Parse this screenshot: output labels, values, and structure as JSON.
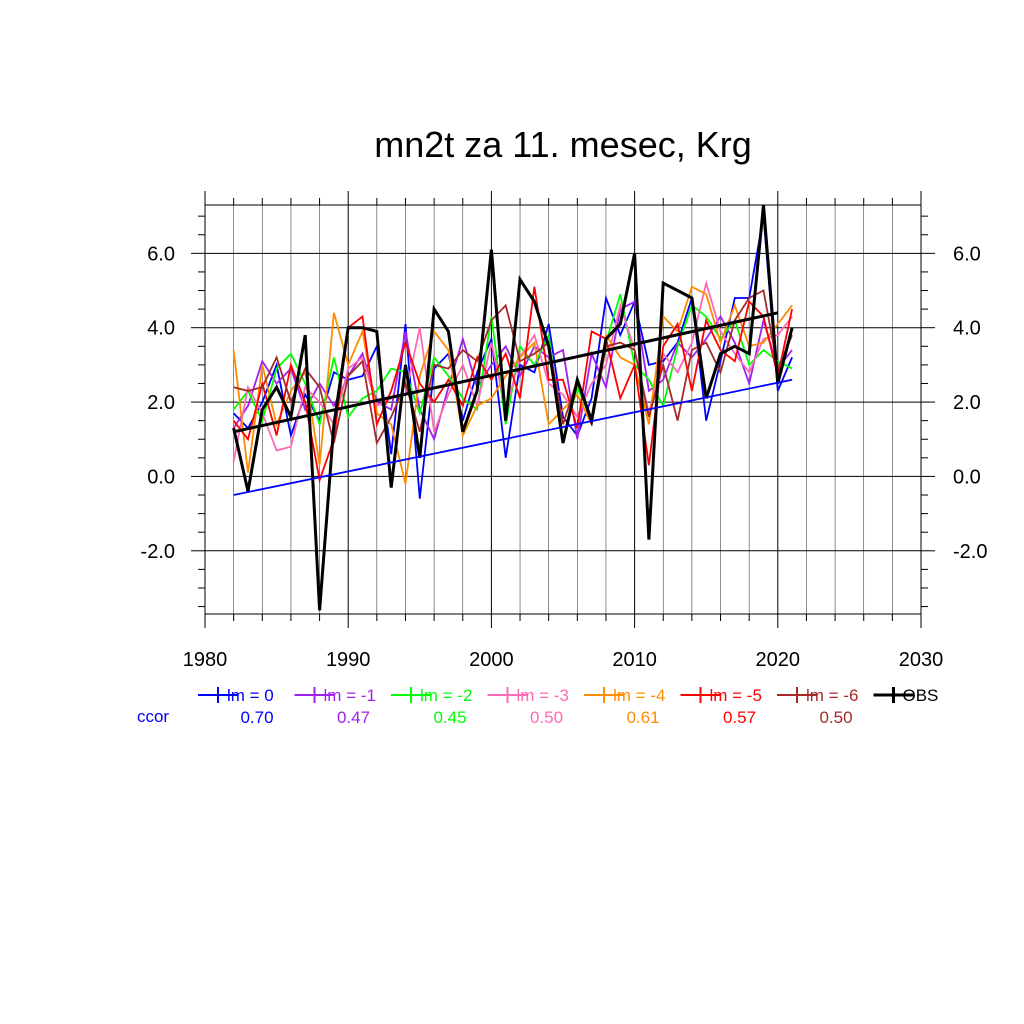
{
  "chart_data": {
    "type": "line",
    "title": "mn2t za 11. mesec, Krg",
    "xlim": [
      1980,
      2030
    ],
    "ylim": [
      -3.7,
      7.3
    ],
    "x_ticks": [
      1980,
      1990,
      2000,
      2010,
      2020,
      2030
    ],
    "y_ticks": [
      -2.0,
      0.0,
      2.0,
      4.0,
      6.0
    ],
    "grid": true,
    "legend_position": "bottom",
    "ccor_label": "ccor",
    "x": [
      1982,
      1983,
      1984,
      1985,
      1986,
      1987,
      1988,
      1989,
      1990,
      1991,
      1992,
      1993,
      1994,
      1995,
      1996,
      1997,
      1998,
      1999,
      2000,
      2001,
      2002,
      2003,
      2004,
      2005,
      2006,
      2007,
      2008,
      2009,
      2010,
      2011,
      2012,
      2013,
      2014,
      2015,
      2016,
      2017,
      2018,
      2019,
      2020,
      2021
    ],
    "series": [
      {
        "name": "lm = 0",
        "ccor": "0.70",
        "color": "#0000ff",
        "values": [
          1.7,
          1.3,
          2.0,
          3.0,
          1.1,
          2.2,
          1.5,
          2.8,
          2.6,
          2.7,
          3.5,
          0.6,
          4.1,
          -0.6,
          2.9,
          3.3,
          1.5,
          2.8,
          3.7,
          0.5,
          3.0,
          2.8,
          4.1,
          1.6,
          1.1,
          2.1,
          4.8,
          3.8,
          4.7,
          3.0,
          3.1,
          3.6,
          4.8,
          1.5,
          3.1,
          4.8,
          4.8,
          7.0,
          2.3,
          3.2
        ]
      },
      {
        "name": "lm = -1",
        "ccor": "0.47",
        "color": "#a020f0",
        "values": [
          1.3,
          1.9,
          3.1,
          2.5,
          2.9,
          1.8,
          2.5,
          1.9,
          2.7,
          3.3,
          2.0,
          1.8,
          3.9,
          1.8,
          1.0,
          2.4,
          3.7,
          2.4,
          3.0,
          3.5,
          2.7,
          3.5,
          3.2,
          3.4,
          1.0,
          3.3,
          2.4,
          4.5,
          4.7,
          2.3,
          2.6,
          3.6,
          3.2,
          3.7,
          4.3,
          3.6,
          2.5,
          4.2,
          2.9,
          3.4
        ]
      },
      {
        "name": "lm = -2",
        "ccor": "0.45",
        "color": "#00ff00",
        "values": [
          1.8,
          2.3,
          1.5,
          2.9,
          3.3,
          2.5,
          1.4,
          3.2,
          1.6,
          2.1,
          2.3,
          2.9,
          2.8,
          1.7,
          3.2,
          2.7,
          2.1,
          1.8,
          4.3,
          1.4,
          3.5,
          3.0,
          3.8,
          1.0,
          2.4,
          1.5,
          3.6,
          4.9,
          3.0,
          2.6,
          1.9,
          3.5,
          4.6,
          4.3,
          3.7,
          4.2,
          3.0,
          3.4,
          3.1,
          2.9
        ]
      },
      {
        "name": "lm = -3",
        "ccor": "0.50",
        "color": "#ff69b4",
        "values": [
          0.4,
          2.4,
          1.7,
          0.7,
          0.8,
          2.4,
          2.0,
          1.4,
          2.9,
          3.2,
          1.9,
          2.1,
          2.2,
          4.0,
          1.2,
          2.2,
          3.0,
          1.9,
          3.6,
          1.8,
          3.2,
          3.8,
          2.5,
          2.2,
          1.6,
          2.5,
          3.0,
          4.6,
          3.4,
          1.7,
          3.3,
          2.8,
          3.6,
          5.2,
          3.9,
          3.3,
          2.8,
          3.7,
          3.8,
          4.3
        ]
      },
      {
        "name": "lm = -4",
        "ccor": "0.61",
        "color": "#ff8c00",
        "values": [
          3.4,
          0.1,
          3.0,
          1.4,
          2.3,
          2.8,
          0.3,
          4.4,
          3.0,
          3.9,
          1.7,
          1.4,
          -0.2,
          2.7,
          3.9,
          3.4,
          1.1,
          1.9,
          2.1,
          2.7,
          3.2,
          3.6,
          1.4,
          1.8,
          2.2,
          1.4,
          3.8,
          3.2,
          3.0,
          1.4,
          4.3,
          3.9,
          5.1,
          4.9,
          3.6,
          4.6,
          3.5,
          3.6,
          4.1,
          4.6
        ]
      },
      {
        "name": "lm = -5",
        "ccor": "0.57",
        "color": "#ff0000",
        "values": [
          1.5,
          1.0,
          2.5,
          1.1,
          3.0,
          2.0,
          -0.1,
          1.0,
          4.0,
          4.3,
          1.4,
          2.3,
          3.6,
          2.5,
          2.0,
          2.6,
          1.9,
          3.2,
          2.6,
          3.3,
          2.1,
          5.1,
          2.6,
          2.6,
          1.3,
          3.9,
          3.7,
          2.1,
          3.0,
          0.3,
          3.5,
          4.1,
          2.3,
          4.2,
          3.4,
          3.1,
          4.7,
          4.3,
          2.7,
          4.5
        ]
      },
      {
        "name": "lm = -6",
        "ccor": "0.50",
        "color": "#a52a2a",
        "values": [
          2.4,
          2.3,
          2.4,
          3.2,
          2.0,
          2.9,
          2.4,
          0.9,
          2.7,
          3.1,
          0.9,
          1.6,
          2.5,
          1.2,
          3.0,
          2.9,
          3.4,
          3.1,
          4.2,
          4.6,
          3.1,
          3.3,
          3.6,
          1.4,
          2.6,
          1.4,
          3.5,
          3.6,
          3.4,
          1.6,
          3.0,
          1.5,
          3.4,
          3.6,
          2.8,
          4.2,
          4.8,
          5.0,
          2.9,
          3.8
        ]
      },
      {
        "name": "OBS",
        "ccor": "",
        "color": "#000000",
        "values": [
          1.3,
          -0.4,
          1.8,
          2.4,
          1.6,
          3.8,
          -3.6,
          1.4,
          4.0,
          4.0,
          3.9,
          -0.3,
          3.0,
          0.5,
          4.5,
          3.9,
          1.2,
          2.3,
          6.1,
          1.5,
          5.3,
          4.7,
          3.5,
          0.9,
          2.6,
          1.5,
          3.7,
          4.1,
          6.0,
          -1.7,
          5.2,
          5.0,
          4.8,
          2.1,
          3.3,
          3.5,
          3.3,
          7.3,
          2.5,
          4.0
        ]
      }
    ],
    "trends": [
      {
        "name": "OBS trend",
        "color": "#000000",
        "x": [
          1982,
          2020
        ],
        "y": [
          1.2,
          4.4
        ]
      },
      {
        "name": "lm = 0 trend",
        "color": "#0000ff",
        "x": [
          1982,
          2021
        ],
        "y": [
          -0.5,
          2.6
        ]
      }
    ]
  }
}
